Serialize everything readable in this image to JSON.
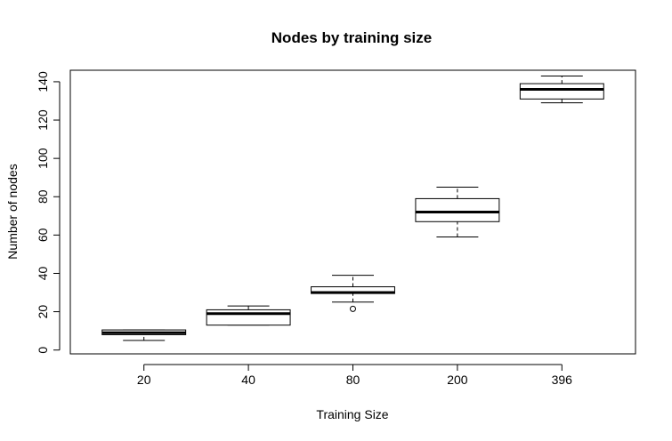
{
  "chart_data": {
    "type": "boxplot",
    "title": "Nodes by training size",
    "xlabel": "Training Size",
    "ylabel": "Number of nodes",
    "categories": [
      "20",
      "40",
      "80",
      "200",
      "396"
    ],
    "boxes": [
      {
        "category": "20",
        "whisker_low": 5,
        "q1": 8,
        "median": 9,
        "q3": 10.5,
        "whisker_high": 10.5,
        "outliers": []
      },
      {
        "category": "40",
        "whisker_low": 13,
        "q1": 13,
        "median": 19,
        "q3": 21,
        "whisker_high": 23,
        "outliers": []
      },
      {
        "category": "80",
        "whisker_low": 25,
        "q1": 29.5,
        "median": 30,
        "q3": 33,
        "whisker_high": 39,
        "outliers": [
          21.5
        ]
      },
      {
        "category": "200",
        "whisker_low": 59,
        "q1": 67,
        "median": 72,
        "q3": 79,
        "whisker_high": 85,
        "outliers": []
      },
      {
        "category": "396",
        "whisker_low": 129,
        "q1": 131,
        "median": 136,
        "q3": 139,
        "whisker_high": 143,
        "outliers": []
      }
    ],
    "yticks": [
      0,
      20,
      40,
      60,
      80,
      100,
      120,
      140
    ],
    "ylim": [
      -2,
      146
    ],
    "grid": false,
    "legend": "none"
  }
}
